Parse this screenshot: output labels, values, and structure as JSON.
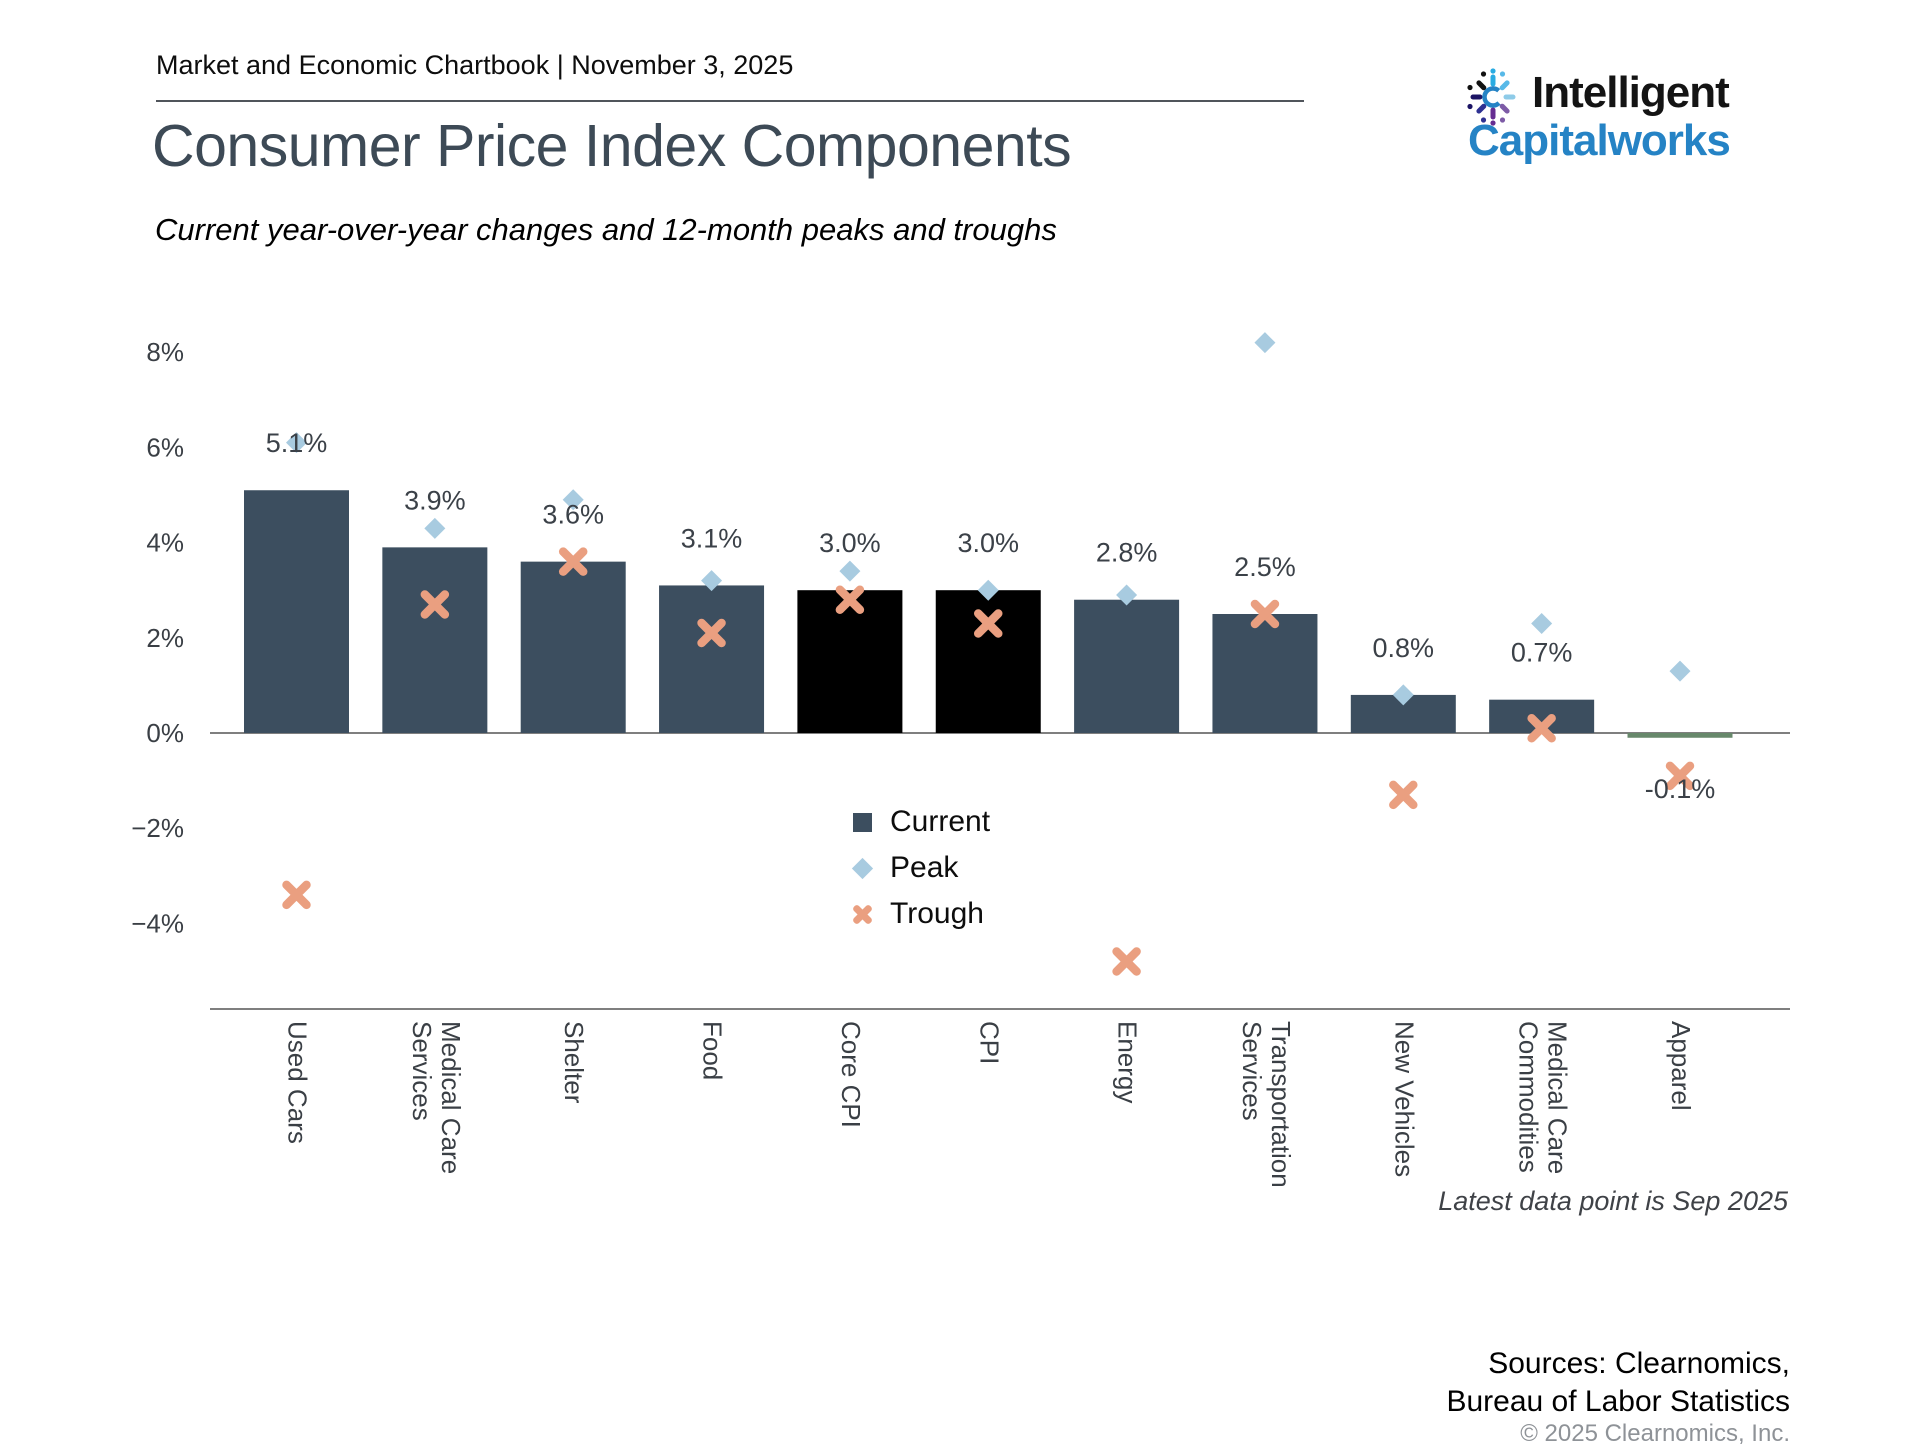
{
  "header": {
    "eyebrow": "Market and Economic Chartbook | November 3, 2025",
    "title": "Consumer Price Index Components",
    "subtitle": "Current year-over-year changes and 12-month peaks and troughs"
  },
  "logo": {
    "line1": "Intelligent",
    "line2": "Capitalworks",
    "brand_blue": "#2583c5"
  },
  "chart_data": {
    "type": "bar",
    "title": "Consumer Price Index Components",
    "subtitle": "Current year-over-year changes and 12-month peaks and troughs",
    "categories": [
      "Used Cars",
      "Medical Care\nServices",
      "Shelter",
      "Food",
      "Core CPI",
      "CPI",
      "Energy",
      "Transportation\nServices",
      "New Vehicles",
      "Medical Care\nCommodities",
      "Apparel"
    ],
    "series": [
      {
        "name": "Current",
        "values": [
          5.1,
          3.9,
          3.6,
          3.1,
          3.0,
          3.0,
          2.8,
          2.5,
          0.8,
          0.7,
          -0.1
        ]
      },
      {
        "name": "Peak",
        "values": [
          6.1,
          4.3,
          4.9,
          3.2,
          3.4,
          3.0,
          2.9,
          8.2,
          0.8,
          2.3,
          1.3
        ]
      },
      {
        "name": "Trough",
        "values": [
          -3.4,
          2.7,
          3.6,
          2.1,
          2.8,
          2.3,
          -4.8,
          2.5,
          -1.3,
          0.1,
          -0.9
        ]
      }
    ],
    "bar_labels": [
      "5.1%",
      "3.9%",
      "3.6%",
      "3.1%",
      "3.0%",
      "3.0%",
      "2.8%",
      "2.5%",
      "0.8%",
      "0.7%",
      "-0.1%"
    ],
    "bar_style": [
      "default",
      "default",
      "default",
      "default",
      "highlight",
      "highlight",
      "default",
      "default",
      "default",
      "default",
      "negative"
    ],
    "y_ticks": [
      {
        "v": 8,
        "label": "8%"
      },
      {
        "v": 6,
        "label": "6%"
      },
      {
        "v": 4,
        "label": "4%"
      },
      {
        "v": 2,
        "label": "2%"
      },
      {
        "v": 0,
        "label": "0%"
      },
      {
        "v": -2,
        "label": "−2%"
      },
      {
        "v": -4,
        "label": "−4%"
      }
    ],
    "ylim": [
      -5.8,
      8.6
    ],
    "grid": false,
    "legend": [
      "Current",
      "Peak",
      "Trough"
    ],
    "legend_position": "center, below zero line",
    "colors": {
      "bar": "#3c4e5f",
      "bar_highlight": "#000000",
      "bar_negative": "#67886b",
      "peak": "#a8cbe0",
      "trough": "#ea9f80",
      "axis_line": "#7f7f7f",
      "label_text": "#3b4148",
      "title_text": "#3d4a56"
    }
  },
  "footer": {
    "latest_note": "Latest data point is Sep 2025",
    "sources_line1": "Sources: Clearnomics,",
    "sources_line2": "Bureau of Labor Statistics",
    "copyright": "© 2025 Clearnomics, Inc."
  }
}
